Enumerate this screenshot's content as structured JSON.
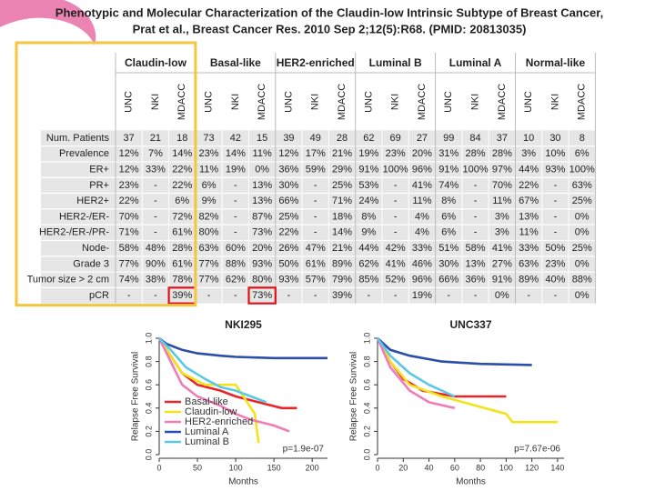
{
  "header": {
    "title": "Phenotypic and Molecular Characterization of the Claudin-low Intrinsic Subtype of Breast Cancer,",
    "citation": "Prat et al., Breast Cancer Res. 2010 Sep 2;12(5):R68. (PMID: 20813035)"
  },
  "table": {
    "groups": [
      {
        "name": "Claudin-low",
        "columns": [
          "UNC",
          "NKI",
          "MDACC"
        ]
      },
      {
        "name": "Basal-like",
        "columns": [
          "UNC",
          "NKI",
          "MDACC"
        ]
      },
      {
        "name": "HER2-enriched",
        "columns": [
          "UNC",
          "NKI",
          "MDACC"
        ]
      },
      {
        "name": "Luminal B",
        "columns": [
          "UNC",
          "NKI",
          "MDACC"
        ]
      },
      {
        "name": "Luminal A",
        "columns": [
          "UNC",
          "NKI",
          "MDACC"
        ]
      },
      {
        "name": "Normal-like",
        "columns": [
          "UNC",
          "NKI",
          "MDACC"
        ]
      }
    ],
    "rows": [
      {
        "label": "Num. Patients",
        "cells": [
          "37",
          "21",
          "18",
          "73",
          "42",
          "15",
          "39",
          "49",
          "28",
          "62",
          "69",
          "27",
          "99",
          "84",
          "37",
          "10",
          "30",
          "8"
        ]
      },
      {
        "label": "Prevalence",
        "cells": [
          "12%",
          "7%",
          "14%",
          "23%",
          "14%",
          "11%",
          "12%",
          "17%",
          "21%",
          "19%",
          "23%",
          "20%",
          "31%",
          "28%",
          "28%",
          "3%",
          "10%",
          "6%"
        ]
      },
      {
        "label": "ER+",
        "cells": [
          "12%",
          "33%",
          "22%",
          "11%",
          "19%",
          "0%",
          "36%",
          "59%",
          "29%",
          "91%",
          "100%",
          "96%",
          "91%",
          "100%",
          "97%",
          "44%",
          "93%",
          "100%"
        ]
      },
      {
        "label": "PR+",
        "cells": [
          "23%",
          "-",
          "22%",
          "6%",
          "-",
          "13%",
          "30%",
          "-",
          "25%",
          "53%",
          "-",
          "41%",
          "74%",
          "-",
          "70%",
          "22%",
          "-",
          "63%"
        ]
      },
      {
        "label": "HER2+",
        "cells": [
          "22%",
          "-",
          "6%",
          "9%",
          "-",
          "13%",
          "66%",
          "-",
          "71%",
          "24%",
          "-",
          "11%",
          "8%",
          "-",
          "11%",
          "67%",
          "-",
          "25%"
        ]
      },
      {
        "label": "HER2-/ER-",
        "cells": [
          "70%",
          "-",
          "72%",
          "82%",
          "-",
          "87%",
          "25%",
          "-",
          "18%",
          "8%",
          "-",
          "4%",
          "6%",
          "-",
          "3%",
          "13%",
          "-",
          "0%"
        ]
      },
      {
        "label": "HER2-/ER-/PR-",
        "cells": [
          "71%",
          "-",
          "61%",
          "80%",
          "-",
          "73%",
          "22%",
          "-",
          "14%",
          "9%",
          "-",
          "4%",
          "6%",
          "-",
          "3%",
          "11%",
          "-",
          "0%"
        ]
      },
      {
        "label": "Node-",
        "cells": [
          "58%",
          "48%",
          "28%",
          "63%",
          "60%",
          "20%",
          "26%",
          "47%",
          "21%",
          "44%",
          "42%",
          "33%",
          "51%",
          "58%",
          "41%",
          "33%",
          "50%",
          "25%"
        ]
      },
      {
        "label": "Grade 3",
        "cells": [
          "77%",
          "90%",
          "61%",
          "77%",
          "88%",
          "93%",
          "50%",
          "61%",
          "89%",
          "62%",
          "41%",
          "46%",
          "30%",
          "13%",
          "27%",
          "63%",
          "23%",
          "0%"
        ]
      },
      {
        "label": "Tumor size > 2 cm",
        "cells": [
          "74%",
          "38%",
          "78%",
          "77%",
          "62%",
          "80%",
          "93%",
          "57%",
          "79%",
          "85%",
          "52%",
          "96%",
          "66%",
          "36%",
          "91%",
          "89%",
          "40%",
          "88%"
        ]
      },
      {
        "label": "pCR",
        "cells": [
          "-",
          "-",
          "39%",
          "-",
          "-",
          "73%",
          "-",
          "-",
          "39%",
          "-",
          "-",
          "19%",
          "-",
          "-",
          "0%",
          "-",
          "-",
          "0%"
        ]
      }
    ],
    "highlighted_cells": [
      {
        "row": 10,
        "col": 2
      },
      {
        "row": 10,
        "col": 5
      }
    ]
  },
  "chart_data": [
    {
      "type": "line",
      "title": "NKI295",
      "x_label": "Months",
      "y_label": "Relapse Free Survival",
      "xlim": [
        0,
        220
      ],
      "xticks": [
        0,
        50,
        100,
        150,
        200
      ],
      "ylim": [
        0,
        1
      ],
      "yticks": [
        {
          "value": 0,
          "label": "0.0"
        },
        {
          "value": 0.2,
          "label": "0.2"
        },
        {
          "value": 0.4,
          "label": "0.4"
        },
        {
          "value": 0.6,
          "label": "0.6"
        },
        {
          "value": 0.8,
          "label": "0.8"
        },
        {
          "value": 1,
          "label": "1.0"
        }
      ],
      "annotation": "p=1.9e-07",
      "legend": true,
      "series": [
        {
          "name": "Basal-like",
          "color": "#e8262a",
          "x": [
            0,
            15,
            30,
            50,
            80,
            100,
            130,
            160,
            180
          ],
          "values": [
            1,
            0.85,
            0.7,
            0.6,
            0.55,
            0.5,
            0.45,
            0.4,
            0.4
          ]
        },
        {
          "name": "Claudin-low",
          "color": "#f2e31a",
          "x": [
            0,
            15,
            30,
            60,
            100,
            125,
            130
          ],
          "values": [
            1,
            0.85,
            0.7,
            0.6,
            0.6,
            0.35,
            0.1
          ]
        },
        {
          "name": "HER2-enriched",
          "color": "#f07cb8",
          "x": [
            0,
            15,
            30,
            50,
            80,
            100,
            120,
            150,
            170
          ],
          "values": [
            1,
            0.8,
            0.6,
            0.5,
            0.42,
            0.35,
            0.3,
            0.25,
            0.2
          ]
        },
        {
          "name": "Luminal A",
          "color": "#2b4fa8",
          "x": [
            0,
            10,
            30,
            50,
            80,
            100,
            150,
            220
          ],
          "values": [
            1,
            0.95,
            0.9,
            0.87,
            0.85,
            0.84,
            0.83,
            0.83
          ]
        },
        {
          "name": "Luminal B",
          "color": "#5bc8ea",
          "x": [
            0,
            15,
            35,
            60,
            80,
            100,
            120,
            140
          ],
          "values": [
            1,
            0.9,
            0.75,
            0.65,
            0.58,
            0.55,
            0.5,
            0.45
          ]
        }
      ]
    },
    {
      "type": "line",
      "title": "UNC337",
      "x_label": "Months",
      "y_label": "Relapse Free Survival",
      "xlim": [
        0,
        145
      ],
      "xticks": [
        0,
        20,
        40,
        60,
        80,
        100,
        120,
        140
      ],
      "ylim": [
        0,
        1
      ],
      "yticks": [
        {
          "value": 0,
          "label": "0.0"
        },
        {
          "value": 0.2,
          "label": "0.2"
        },
        {
          "value": 0.4,
          "label": "0.4"
        },
        {
          "value": 0.6,
          "label": "0.6"
        },
        {
          "value": 0.8,
          "label": "0.8"
        },
        {
          "value": 1,
          "label": "1.0"
        }
      ],
      "annotation": "p=7.67e-06",
      "legend": false,
      "series": [
        {
          "color": "#e8262a",
          "x": [
            0,
            10,
            20,
            35,
            60,
            100
          ],
          "values": [
            1,
            0.8,
            0.65,
            0.55,
            0.5,
            0.5
          ]
        },
        {
          "color": "#f2e31a",
          "x": [
            0,
            10,
            25,
            50,
            100,
            105,
            140
          ],
          "values": [
            1,
            0.8,
            0.6,
            0.5,
            0.35,
            0.28,
            0.28
          ]
        },
        {
          "color": "#f07cb8",
          "x": [
            0,
            10,
            25,
            40,
            60
          ],
          "values": [
            1,
            0.75,
            0.55,
            0.45,
            0.4
          ]
        },
        {
          "color": "#2b4fa8",
          "x": [
            0,
            10,
            25,
            50,
            80,
            120
          ],
          "values": [
            1,
            0.9,
            0.85,
            0.8,
            0.78,
            0.77
          ]
        },
        {
          "color": "#5bc8ea",
          "x": [
            0,
            10,
            25,
            40,
            60
          ],
          "values": [
            1,
            0.85,
            0.7,
            0.6,
            0.5
          ]
        }
      ]
    }
  ]
}
